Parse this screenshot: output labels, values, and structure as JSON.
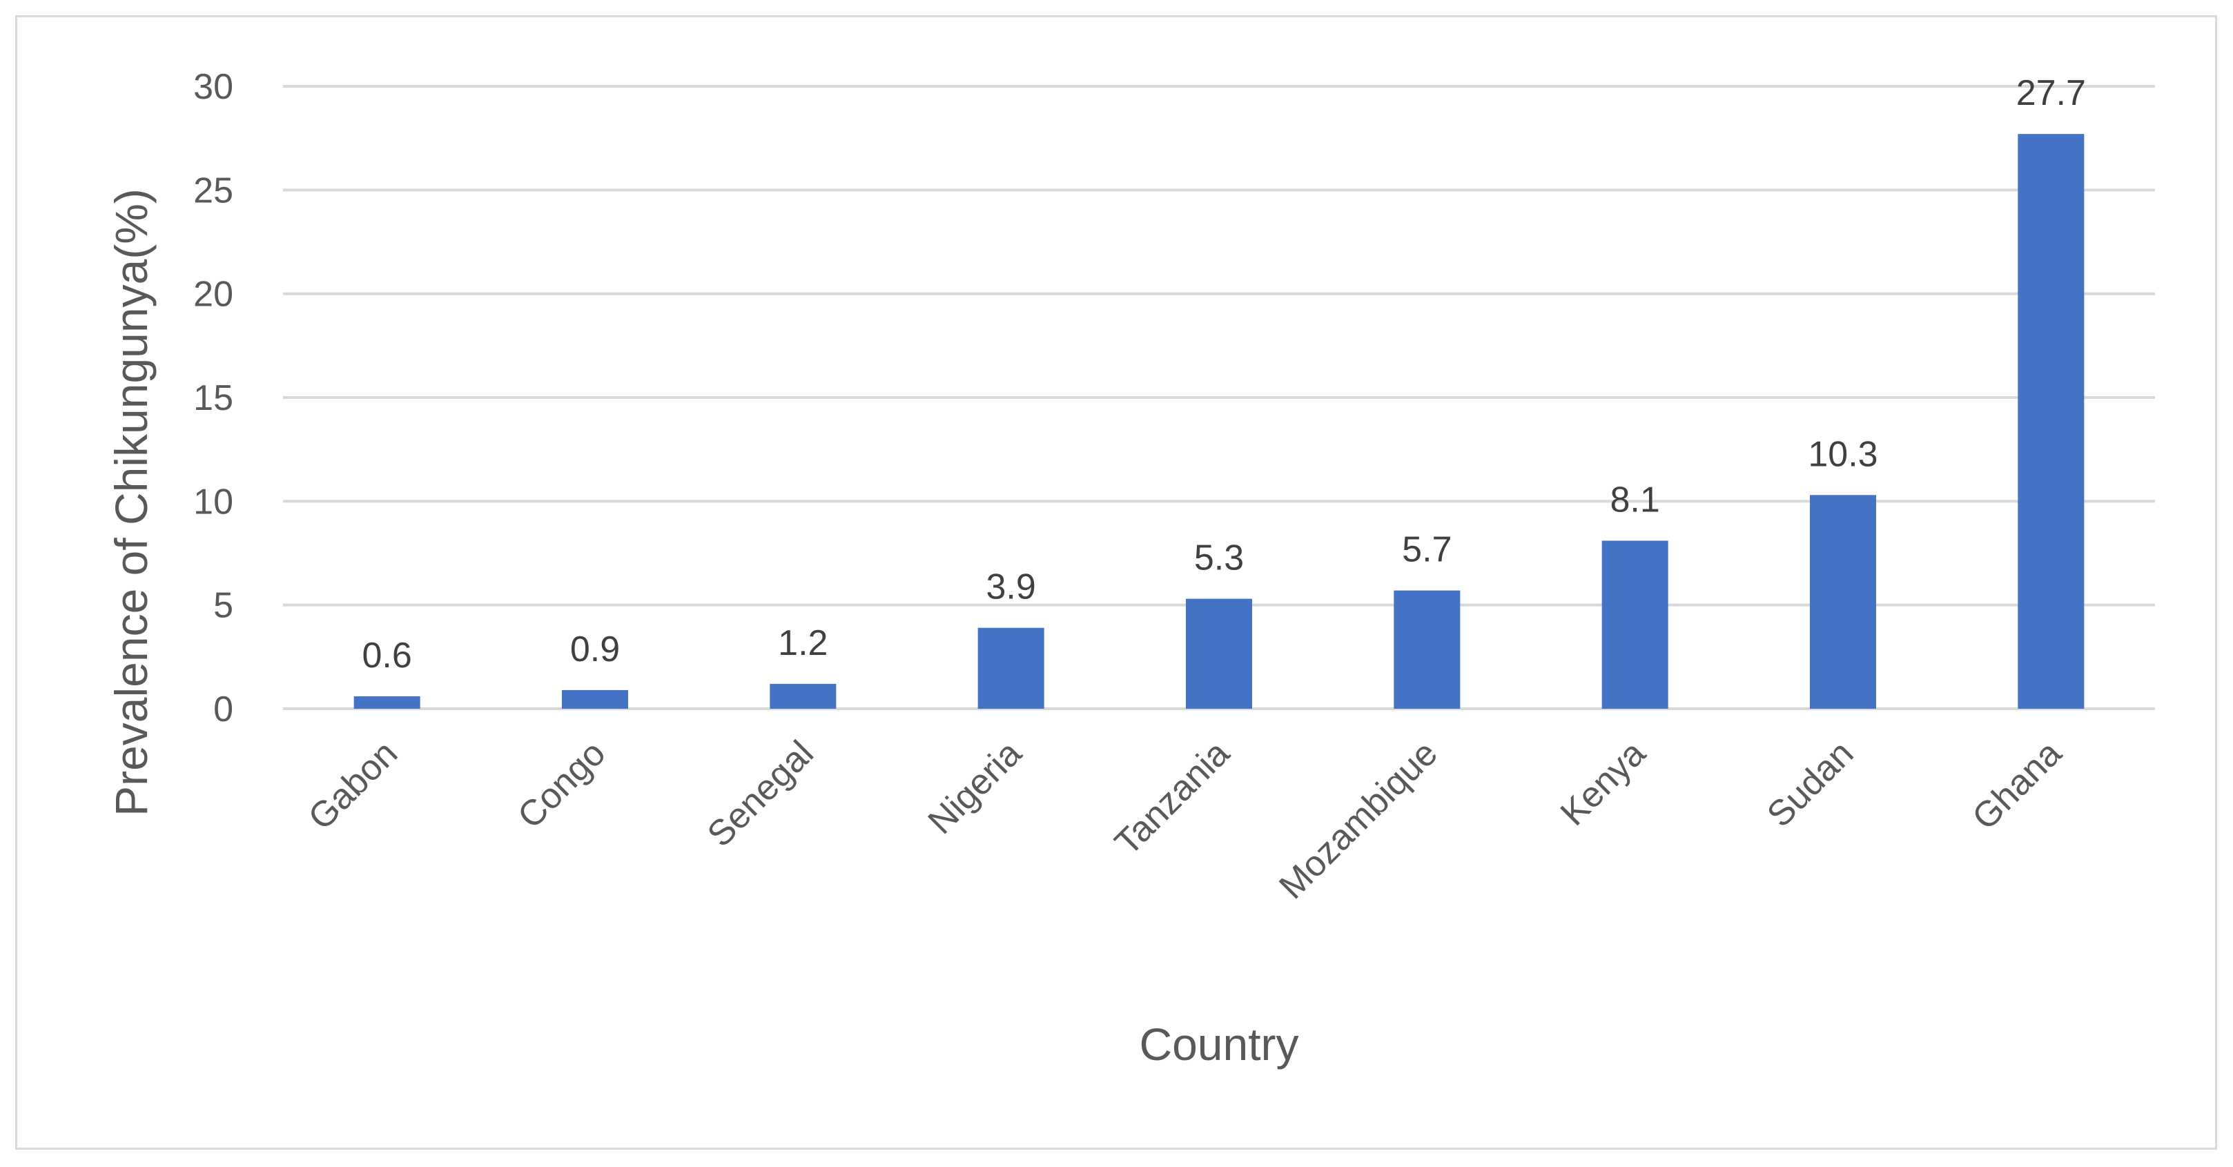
{
  "chart_data": {
    "type": "bar",
    "title": "",
    "xlabel": "Country",
    "ylabel": "Prevalence of Chikungunya(%)",
    "categories": [
      "Gabon",
      "Congo",
      "Senegal",
      "Nigeria",
      "Tanzania",
      "Mozambique",
      "Kenya",
      "Sudan",
      "Ghana"
    ],
    "values": [
      0.6,
      0.9,
      1.2,
      3.9,
      5.3,
      5.7,
      8.1,
      10.3,
      27.7
    ],
    "data_labels": [
      "0.6",
      "0.9",
      "1.2",
      "3.9",
      "5.3",
      "5.7",
      "8.1",
      "10.3",
      "27.7"
    ],
    "ylim": [
      0,
      30
    ],
    "yticks": [
      0,
      5,
      10,
      15,
      20,
      25,
      30
    ],
    "ytick_labels": [
      "0",
      "5",
      "10",
      "15",
      "20",
      "25",
      "30"
    ],
    "grid": true,
    "legend": "none",
    "colors": {
      "bar": "#4472c4",
      "grid": "#d9d9d9",
      "text": "#595959",
      "data_label": "#404040"
    }
  }
}
